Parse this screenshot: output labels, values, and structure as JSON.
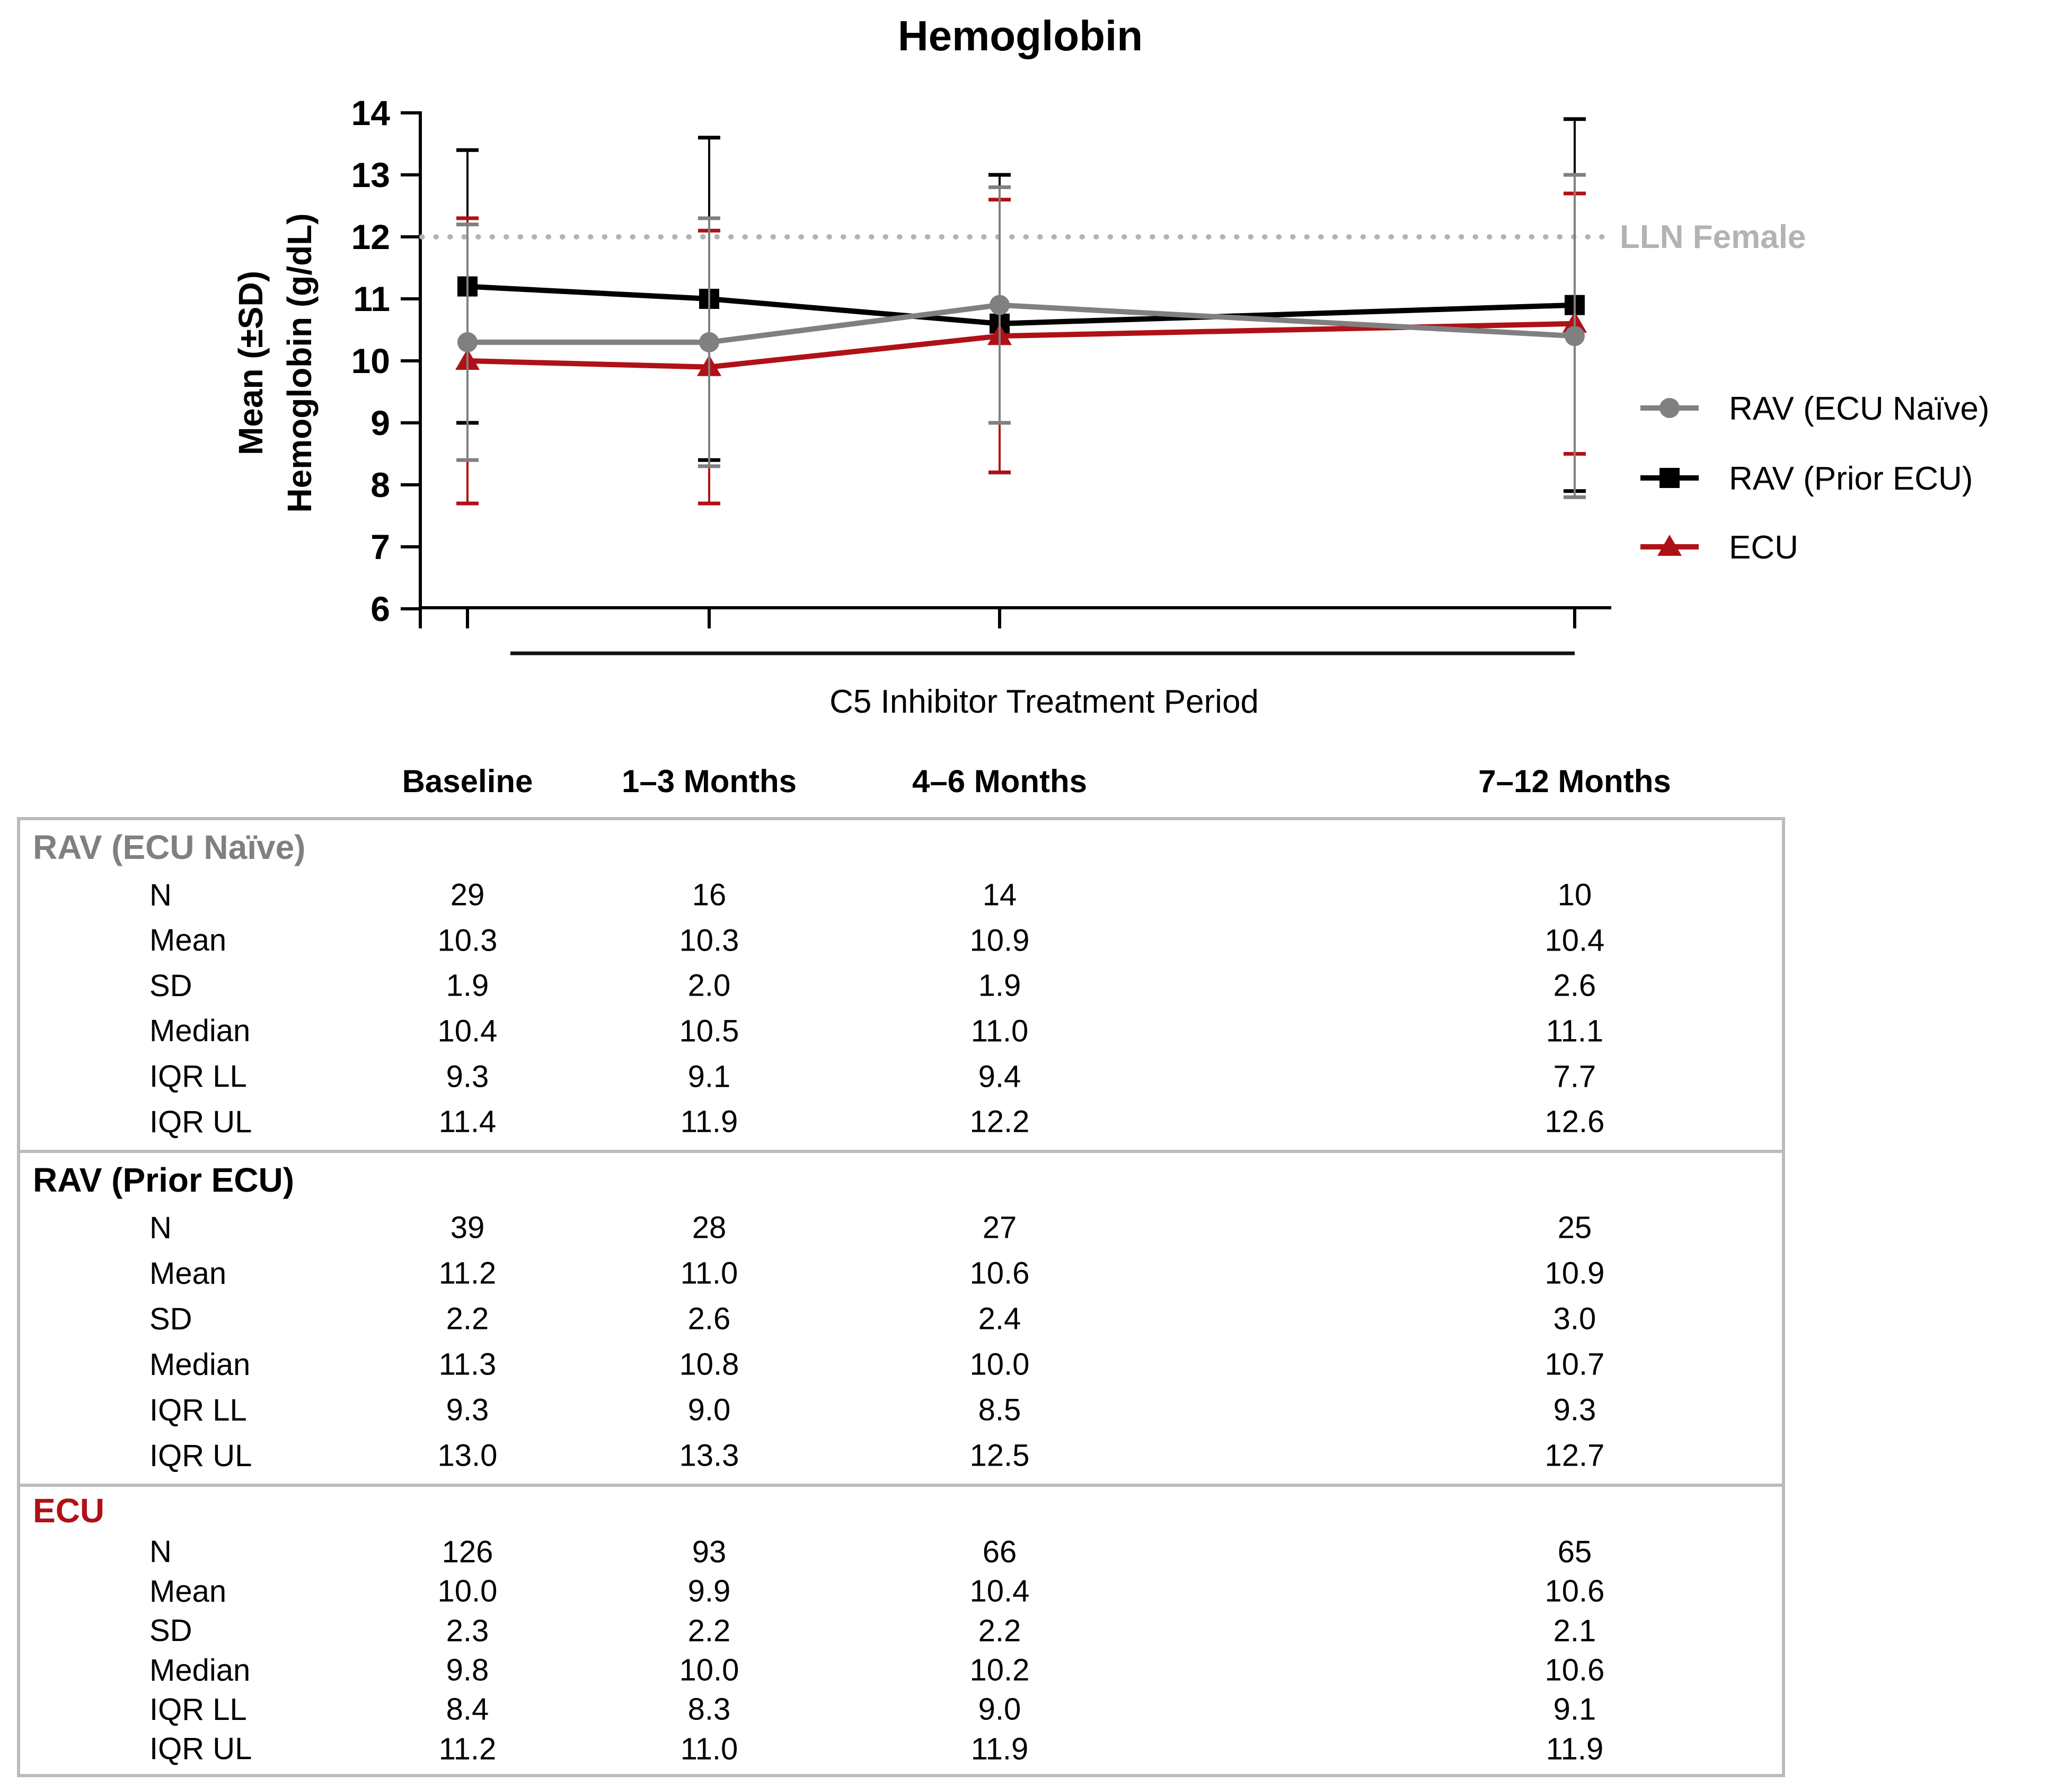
{
  "figure": {
    "title": "Hemoglobin"
  },
  "chart": {
    "y_axis": {
      "label_line1": "Mean (±SD)",
      "label_line2": "Hemoglobin (g/dL)",
      "min": 6,
      "max": 14,
      "ticks": [
        14,
        13,
        12,
        11,
        10,
        9,
        8,
        7,
        6
      ]
    },
    "reference_line": {
      "label": "LLN Female",
      "value": 12,
      "color": "#b3b3b3"
    },
    "bracket_label": "C5 Inhibitor Treatment Period"
  },
  "chart_data": {
    "type": "line",
    "categories": [
      "Baseline",
      "1–3 Months",
      "4–6 Months",
      "7–12 Months"
    ],
    "ylim": [
      6,
      14
    ],
    "ylabel": "Mean (±SD) Hemoglobin (g/dL)",
    "grid": false,
    "legend_position": "right",
    "reference_line": {
      "label": "LLN Female",
      "value": 12
    },
    "series": [
      {
        "name": "RAV (ECU Naïve)",
        "color": "#808080",
        "marker": "circle",
        "means": [
          10.3,
          10.3,
          10.9,
          10.4
        ],
        "sd": [
          1.9,
          2.0,
          1.9,
          2.6
        ]
      },
      {
        "name": "RAV (Prior ECU)",
        "color": "#000000",
        "marker": "square",
        "means": [
          11.2,
          11.0,
          10.6,
          10.9
        ],
        "sd": [
          2.2,
          2.6,
          2.4,
          3.0
        ]
      },
      {
        "name": "ECU",
        "color": "#b01116",
        "marker": "triangle",
        "means": [
          10.0,
          9.9,
          10.4,
          10.6
        ],
        "sd": [
          2.3,
          2.2,
          2.2,
          2.1
        ]
      }
    ]
  },
  "table": {
    "columns": [
      "Baseline",
      "1–3 Months",
      "4–6 Months",
      "7–12 Months"
    ],
    "row_labels": [
      "N",
      "Mean",
      "SD",
      "Median",
      "IQR LL",
      "IQR UL"
    ],
    "sections": [
      {
        "name": "RAV (ECU Naïve)",
        "color": "#808080",
        "values": [
          [
            "29",
            "16",
            "14",
            "10"
          ],
          [
            "10.3",
            "10.3",
            "10.9",
            "10.4"
          ],
          [
            "1.9",
            "2.0",
            "1.9",
            "2.6"
          ],
          [
            "10.4",
            "10.5",
            "11.0",
            "11.1"
          ],
          [
            "9.3",
            "9.1",
            "9.4",
            "7.7"
          ],
          [
            "11.4",
            "11.9",
            "12.2",
            "12.6"
          ]
        ]
      },
      {
        "name": "RAV (Prior ECU)",
        "color": "#000000",
        "values": [
          [
            "39",
            "28",
            "27",
            "25"
          ],
          [
            "11.2",
            "11.0",
            "10.6",
            "10.9"
          ],
          [
            "2.2",
            "2.6",
            "2.4",
            "3.0"
          ],
          [
            "11.3",
            "10.8",
            "10.0",
            "10.7"
          ],
          [
            "9.3",
            "9.0",
            "8.5",
            "9.3"
          ],
          [
            "13.0",
            "13.3",
            "12.5",
            "12.7"
          ]
        ]
      },
      {
        "name": "ECU",
        "color": "#b01116",
        "values": [
          [
            "126",
            "93",
            "66",
            "65"
          ],
          [
            "10.0",
            "9.9",
            "10.4",
            "10.6"
          ],
          [
            "2.3",
            "2.2",
            "2.2",
            "2.1"
          ],
          [
            "9.8",
            "10.0",
            "10.2",
            "10.6"
          ],
          [
            "8.4",
            "8.3",
            "9.0",
            "9.1"
          ],
          [
            "11.2",
            "11.0",
            "11.9",
            "11.9"
          ]
        ]
      }
    ]
  }
}
